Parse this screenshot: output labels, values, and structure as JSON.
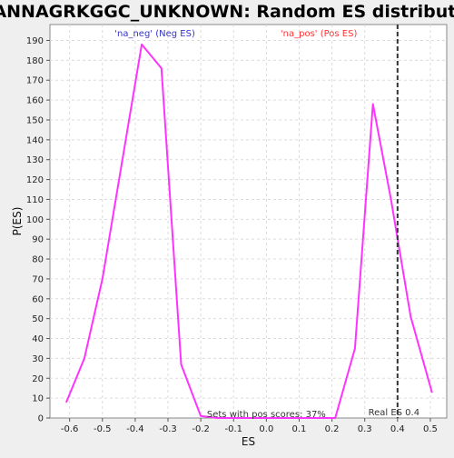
{
  "chart_data": {
    "type": "line",
    "title": "CCANNAGRKGGC_UNKNOWN: Random ES distribution",
    "xlabel": "ES",
    "ylabel": "P(ES)",
    "xlim": [
      -0.66,
      0.55
    ],
    "ylim": [
      0,
      198
    ],
    "grid": true,
    "xticks": [
      -0.6,
      -0.5,
      -0.4,
      -0.3,
      -0.2,
      -0.1,
      0.0,
      0.1,
      0.2,
      0.3,
      0.4,
      0.5
    ],
    "xtick_labels": [
      "-0.6",
      "-0.5",
      "-0.4",
      "-0.3",
      "-0.2",
      "-0.1",
      "0.0",
      "0.1",
      "0.2",
      "0.3",
      "0.4",
      "0.5"
    ],
    "yticks": [
      0,
      10,
      20,
      30,
      40,
      50,
      60,
      70,
      80,
      90,
      100,
      110,
      120,
      130,
      140,
      150,
      160,
      170,
      180,
      190
    ],
    "series": [
      {
        "color": "#ff33ff",
        "x": [
          -0.61,
          -0.555,
          -0.5,
          -0.38,
          -0.32,
          -0.26,
          -0.2,
          -0.15,
          -0.1,
          0.0,
          0.1,
          0.21,
          0.27,
          0.325,
          0.38,
          0.44,
          0.505
        ],
        "y": [
          8,
          30,
          70,
          188,
          176,
          27,
          1,
          0,
          0,
          0,
          0,
          0,
          35,
          158,
          110,
          51,
          13
        ]
      }
    ],
    "real_es": {
      "x": 0.4,
      "label": "Real ES 0.4",
      "color": "#333333"
    },
    "annotations": {
      "neg": {
        "text": "'na_neg' (Neg ES)",
        "color": "#3333cc"
      },
      "pos": {
        "text": "'na_pos' (Pos ES)",
        "color": "#ff3333"
      },
      "footer": {
        "text": "Sets with pos scores: 37%",
        "color": "#333333"
      }
    }
  }
}
